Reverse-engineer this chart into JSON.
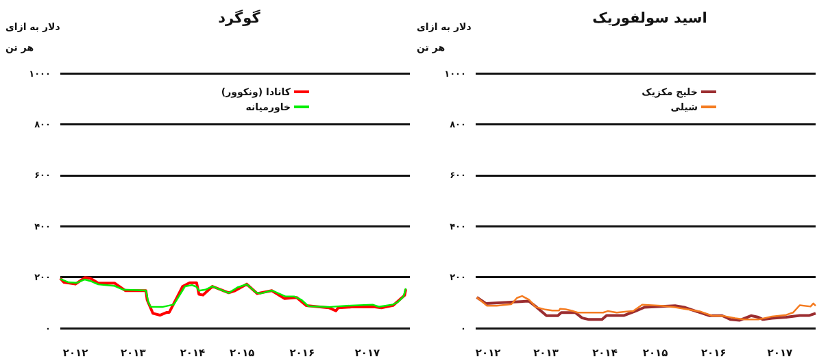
{
  "chart_data": [
    {
      "type": "line",
      "title": "گوگرد",
      "ylabel": "دلار به ازای\nهر تن",
      "legend": "top right",
      "grid": "y",
      "xlim": [
        2012,
        2018
      ],
      "xticks": [
        {
          "value": 2012.26,
          "label": "۲۰۱۲"
        },
        {
          "value": 2013.25,
          "label": "۲۰۱۳"
        },
        {
          "value": 2014.27,
          "label": "۲۰۱۴"
        },
        {
          "value": 2015.12,
          "label": "۲۰۱۵"
        },
        {
          "value": 2016.15,
          "label": "۲۰۱۶"
        },
        {
          "value": 2017.27,
          "label": "۲۰۱۷"
        }
      ],
      "ylim": [
        0,
        1000
      ],
      "yticks": [
        {
          "value": 0,
          "label": "۰"
        },
        {
          "value": 200,
          "label": "۲۰۰"
        },
        {
          "value": 400,
          "label": "۴۰۰"
        },
        {
          "value": 600,
          "label": "۶۰۰"
        },
        {
          "value": 800,
          "label": "۸۰۰"
        },
        {
          "value": 1000,
          "label": "۱۰۰۰"
        }
      ],
      "series": [
        {
          "name": "کانادا (ونکوور)",
          "color": "#ff0000",
          "x": [
            2012.0,
            2012.06,
            2012.26,
            2012.42,
            2012.51,
            2012.65,
            2012.93,
            2013.12,
            2013.47,
            2013.49,
            2013.59,
            2013.71,
            2013.83,
            2013.87,
            2014.1,
            2014.22,
            2014.34,
            2014.38,
            2014.45,
            2014.61,
            2014.89,
            2015.0,
            2015.2,
            2015.38,
            2015.63,
            2015.85,
            2016.06,
            2016.22,
            2016.61,
            2016.73,
            2016.77,
            2017.0,
            2017.4,
            2017.51,
            2017.71,
            2017.91,
            2017.93
          ],
          "values": [
            196,
            180,
            173,
            198,
            196,
            177,
            177,
            147,
            147,
            111,
            58,
            51,
            62,
            62,
            164,
            178,
            178,
            133,
            130,
            164,
            139,
            147,
            173,
            136,
            147,
            116,
            120,
            89,
            80,
            68,
            80,
            83,
            83,
            80,
            89,
            129,
            153
          ]
        },
        {
          "name": "خاورمیانه",
          "color": "#00ee00",
          "x": [
            2012.0,
            2012.14,
            2012.28,
            2012.42,
            2012.53,
            2012.65,
            2012.93,
            2013.08,
            2013.47,
            2013.51,
            2013.55,
            2013.75,
            2013.87,
            2013.95,
            2014.14,
            2014.26,
            2014.34,
            2014.38,
            2014.49,
            2014.61,
            2014.89,
            2015.04,
            2015.2,
            2015.36,
            2015.44,
            2015.63,
            2015.87,
            2016.02,
            2016.14,
            2016.26,
            2016.61,
            2017.0,
            2017.36,
            2017.47,
            2017.71,
            2017.79,
            2017.89,
            2017.93
          ],
          "values": [
            193,
            180,
            178,
            191,
            184,
            172,
            166,
            151,
            148,
            102,
            84,
            83,
            89,
            93,
            164,
            169,
            162,
            147,
            151,
            164,
            138,
            160,
            172,
            140,
            136,
            148,
            124,
            124,
            111,
            86,
            83,
            89,
            92,
            84,
            93,
            102,
            124,
            156
          ]
        }
      ]
    },
    {
      "type": "line",
      "title": "اسید سولفوریک",
      "ylabel": "دلار به ازای\nهر تن",
      "legend": "top right",
      "grid": "y",
      "xlim": [
        2012,
        2018
      ],
      "xticks": [
        {
          "value": 2012.22,
          "label": "۲۰۱۲"
        },
        {
          "value": 2013.24,
          "label": "۲۰۱۳"
        },
        {
          "value": 2014.28,
          "label": "۲۰۱۴"
        },
        {
          "value": 2015.17,
          "label": "۲۰۱۵"
        },
        {
          "value": 2016.2,
          "label": "۲۰۱۶"
        },
        {
          "value": 2017.37,
          "label": "۲۰۱۷"
        }
      ],
      "ylim": [
        0,
        1000
      ],
      "yticks": [
        {
          "value": 0,
          "label": "۰"
        },
        {
          "value": 200,
          "label": "۲۰۰"
        },
        {
          "value": 400,
          "label": "۴۰۰"
        },
        {
          "value": 600,
          "label": "۶۰۰"
        },
        {
          "value": 800,
          "label": "۸۰۰"
        },
        {
          "value": 1000,
          "label": "۱۰۰۰"
        }
      ],
      "series": [
        {
          "name": "خلیج مکزیک",
          "color": "#9b2d30",
          "x": [
            2012.02,
            2012.18,
            2012.94,
            2013.06,
            2013.25,
            2013.45,
            2013.51,
            2013.76,
            2013.88,
            2014.0,
            2014.23,
            2014.31,
            2014.62,
            2014.82,
            2014.98,
            2015.52,
            2015.68,
            2016.13,
            2016.35,
            2016.5,
            2016.66,
            2016.86,
            2016.99,
            2017.07,
            2017.23,
            2017.48,
            2017.72,
            2017.89,
            2018.0
          ],
          "values": [
            121,
            97,
            106,
            85,
            49,
            49,
            61,
            61,
            40,
            34,
            34,
            50,
            50,
            67,
            82,
            88,
            82,
            49,
            49,
            34,
            31,
            49,
            43,
            34,
            39,
            43,
            50,
            50,
            58
          ]
        },
        {
          "name": "شیلی",
          "color": "#f47b20",
          "x": [
            2012.02,
            2012.2,
            2012.37,
            2012.63,
            2012.73,
            2012.82,
            2012.94,
            2013.06,
            2013.23,
            2013.35,
            2013.47,
            2013.49,
            2013.59,
            2013.72,
            2013.8,
            2014.25,
            2014.33,
            2014.49,
            2014.66,
            2014.78,
            2014.94,
            2015.27,
            2015.52,
            2015.68,
            2015.97,
            2016.17,
            2016.37,
            2016.58,
            2016.74,
            2016.99,
            2017.23,
            2017.48,
            2017.6,
            2017.72,
            2017.91,
            2017.96,
            2018.0
          ],
          "values": [
            121,
            88,
            88,
            94,
            119,
            126,
            112,
            83,
            73,
            69,
            69,
            76,
            74,
            67,
            61,
            61,
            67,
            61,
            65,
            67,
            92,
            88,
            82,
            76,
            65,
            49,
            48,
            39,
            34,
            34,
            46,
            52,
            61,
            90,
            85,
            97,
            88
          ]
        }
      ]
    }
  ]
}
